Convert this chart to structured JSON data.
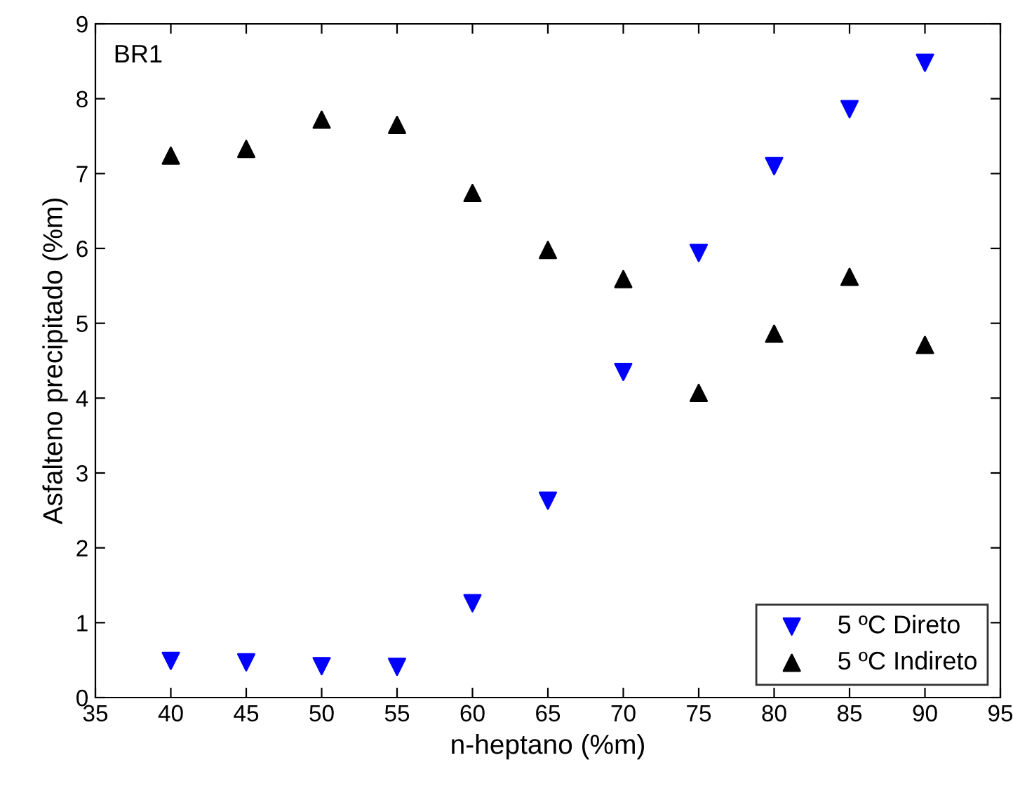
{
  "chart_data": {
    "type": "scatter",
    "xlabel": "n-heptano (%m)",
    "ylabel": "Asfalteno precipitado (%m)",
    "annotations": [
      "BR1"
    ],
    "x": [
      40,
      45,
      50,
      55,
      60,
      65,
      70,
      75,
      80,
      85,
      90
    ],
    "series": [
      {
        "name": "5 ºC Direto",
        "color": "#0000ff",
        "marker": "triangle_down",
        "values": [
          0.49,
          0.47,
          0.42,
          0.41,
          1.26,
          2.63,
          4.35,
          5.94,
          7.1,
          7.86,
          8.48
        ]
      },
      {
        "name": "5 ºC Indireto",
        "color": "#000000",
        "marker": "triangle",
        "values": [
          7.24,
          7.33,
          7.72,
          7.65,
          6.74,
          5.98,
          5.59,
          4.07,
          4.86,
          5.62,
          4.71
        ]
      }
    ],
    "xlim": [
      35,
      95
    ],
    "xticks": [
      35,
      40,
      45,
      50,
      55,
      60,
      65,
      70,
      75,
      80,
      85,
      90,
      95
    ],
    "ylim": [
      0,
      9
    ],
    "yticks": [
      0,
      1,
      2,
      3,
      4,
      5,
      6,
      7,
      8,
      9
    ],
    "grid": false,
    "legend": "bottom right"
  }
}
